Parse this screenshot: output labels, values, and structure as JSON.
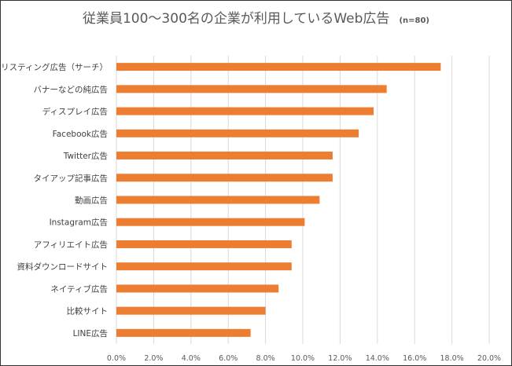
{
  "chart_data": {
    "type": "bar",
    "orientation": "horizontal",
    "title": "従業員100～300名の企業が利用しているWeb広告",
    "subtitle": "(n=80)",
    "categories": [
      "リスティング広告（サーチ）",
      "バナーなどの純広告",
      "ディスプレイ広告",
      "Facebook広告",
      "Twitter広告",
      "タイアップ記事広告",
      "動画広告",
      "Instagram広告",
      "アフィリエイト広告",
      "資料ダウンロードサイト",
      "ネイティブ広告",
      "比較サイト",
      "LINE広告"
    ],
    "values": [
      17.4,
      14.5,
      13.8,
      13.0,
      11.6,
      11.6,
      10.9,
      10.1,
      9.4,
      9.4,
      8.7,
      8.0,
      7.2
    ],
    "xlim": [
      0,
      20
    ],
    "ticks": [
      "0.0%",
      "2.0%",
      "4.0%",
      "6.0%",
      "8.0%",
      "10.0%",
      "12.0%",
      "14.0%",
      "16.0%",
      "18.0%",
      "20.0%"
    ],
    "grid": true,
    "legend": "none",
    "bar_color": "#ED7D31",
    "grid_color": "#D9D9D9"
  }
}
